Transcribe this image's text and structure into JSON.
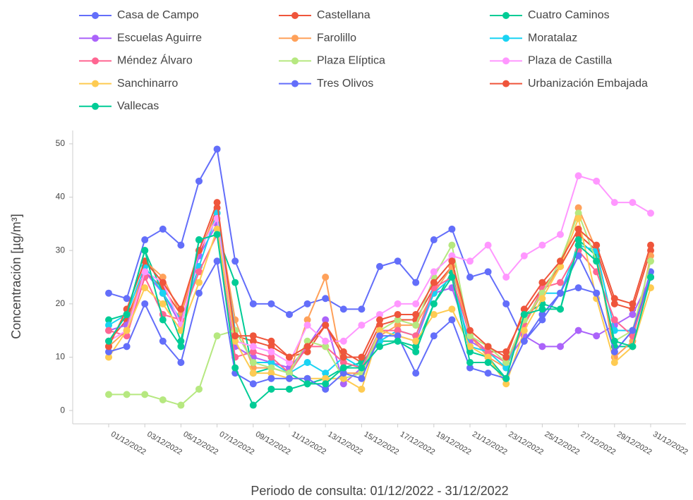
{
  "chart_data": {
    "type": "line",
    "y_label": "Concentración [µg/m³]",
    "x_label": "Periodo de consulta: 01/12/2022 - 31/12/2022",
    "categories": [
      "01/12/2022",
      null,
      "03/12/2022",
      null,
      "05/12/2022",
      null,
      "07/12/2022",
      null,
      "09/12/2022",
      null,
      "11/12/2022",
      null,
      "13/12/2022",
      null,
      "15/12/2022",
      null,
      "17/12/2022",
      null,
      "19/12/2022",
      null,
      "21/12/2022",
      null,
      "23/12/2022",
      null,
      "25/12/2022",
      null,
      "27/12/2022",
      null,
      "29/12/2022",
      null,
      "31/12/2022"
    ],
    "ylim": [
      -2.5,
      52.5
    ],
    "yticks": [
      0,
      10,
      20,
      30,
      40,
      50
    ],
    "series": [
      {
        "name": "Casa de Campo",
        "color": "#636efa",
        "values": [
          22,
          21,
          32,
          34,
          31,
          43,
          49,
          28,
          20,
          20,
          18,
          20,
          21,
          19,
          19,
          27,
          28,
          24,
          32,
          34,
          25,
          26,
          20,
          13,
          17,
          22,
          23,
          22,
          11,
          15,
          26
        ]
      },
      {
        "name": "Castellana",
        "color": "#EF553B",
        "values": [
          13,
          17,
          26,
          23,
          18,
          29,
          38,
          14,
          13,
          12,
          10,
          11,
          16,
          11,
          9,
          16,
          17,
          17,
          23,
          27,
          14,
          11,
          11,
          18,
          23,
          27,
          33,
          30,
          20,
          19,
          30
        ]
      },
      {
        "name": "Cuatro Caminos",
        "color": "#00cc96",
        "values": [
          17,
          18,
          30,
          22,
          13,
          32,
          33,
          24,
          7,
          8,
          7,
          5,
          6,
          8,
          9,
          13,
          13,
          12,
          20,
          26,
          11,
          10,
          6,
          18,
          20,
          19,
          32,
          29,
          12,
          12,
          25
        ]
      },
      {
        "name": "Escuelas Aguirre",
        "color": "#ab63fa",
        "values": [
          15,
          16,
          26,
          22,
          16,
          29,
          35,
          12,
          10,
          9,
          8,
          12,
          17,
          5,
          8,
          15,
          14,
          13,
          22,
          23,
          13,
          11,
          9,
          14,
          12,
          12,
          15,
          14,
          16,
          18,
          25
        ]
      },
      {
        "name": "Farolillo",
        "color": "#FFA15A",
        "values": [
          12,
          15,
          28,
          25,
          18,
          30,
          37,
          17,
          8,
          8,
          7,
          17,
          25,
          7,
          7,
          14,
          16,
          16,
          22,
          27,
          14,
          10,
          8,
          16,
          22,
          27,
          38,
          30,
          10,
          13,
          29
        ]
      },
      {
        "name": "Moratalaz",
        "color": "#19d3f3",
        "values": [
          16,
          18,
          27,
          22,
          17,
          27,
          37,
          15,
          9,
          9,
          7,
          9,
          7,
          10,
          8,
          13,
          15,
          14,
          22,
          25,
          12,
          11,
          8,
          17,
          22,
          22,
          31,
          30,
          15,
          15,
          25
        ]
      },
      {
        "name": "Méndez Álvaro",
        "color": "#FF6692",
        "values": [
          15,
          14,
          25,
          18,
          17,
          26,
          33,
          10,
          11,
          10,
          7,
          12,
          12,
          9,
          8,
          15,
          15,
          14,
          23,
          25,
          14,
          11,
          9,
          16,
          23,
          24,
          30,
          26,
          17,
          14,
          25
        ]
      },
      {
        "name": "Plaza Elíptica",
        "color": "#B6E880",
        "values": [
          3,
          3,
          3,
          2,
          1,
          4,
          14,
          15,
          9,
          8,
          7,
          13,
          12,
          6,
          7,
          15,
          17,
          16,
          25,
          31,
          14,
          12,
          9,
          17,
          22,
          28,
          37,
          28,
          13,
          15,
          28
        ]
      },
      {
        "name": "Plaza de Castilla",
        "color": "#FF97FF",
        "values": [
          13,
          15,
          26,
          24,
          16,
          30,
          36,
          13,
          12,
          11,
          9,
          16,
          13,
          13,
          16,
          18,
          20,
          20,
          26,
          29,
          28,
          31,
          25,
          29,
          31,
          33,
          44,
          43,
          39,
          39,
          37
        ]
      },
      {
        "name": "Sanchinarro",
        "color": "#FECB52",
        "values": [
          10,
          15,
          23,
          20,
          15,
          24,
          34,
          13,
          7,
          7,
          6,
          6,
          6,
          6,
          4,
          15,
          14,
          13,
          18,
          19,
          12,
          10,
          5,
          15,
          21,
          27,
          36,
          21,
          9,
          12,
          23
        ]
      },
      {
        "name": "Tres Olivos",
        "color": "#636efa",
        "values": [
          11,
          12,
          20,
          13,
          9,
          22,
          28,
          7,
          5,
          6,
          6,
          6,
          4,
          7,
          6,
          14,
          14,
          7,
          14,
          17,
          8,
          7,
          6,
          13,
          18,
          22,
          29,
          22,
          11,
          15,
          25
        ]
      },
      {
        "name": "Urbanización Embajada",
        "color": "#EF553B",
        "values": [
          12,
          19,
          28,
          24,
          19,
          30,
          39,
          14,
          14,
          13,
          10,
          12,
          16,
          10,
          10,
          17,
          18,
          18,
          24,
          28,
          15,
          12,
          10,
          19,
          24,
          28,
          34,
          31,
          21,
          20,
          31
        ]
      },
      {
        "name": "Vallecas",
        "color": "#00cc96",
        "values": [
          13,
          18,
          30,
          17,
          12,
          32,
          33,
          8,
          1,
          4,
          4,
          5,
          5,
          8,
          8,
          12,
          13,
          11,
          20,
          25,
          9,
          9,
          6,
          18,
          19,
          19,
          31,
          28,
          13,
          12,
          25
        ]
      }
    ]
  }
}
